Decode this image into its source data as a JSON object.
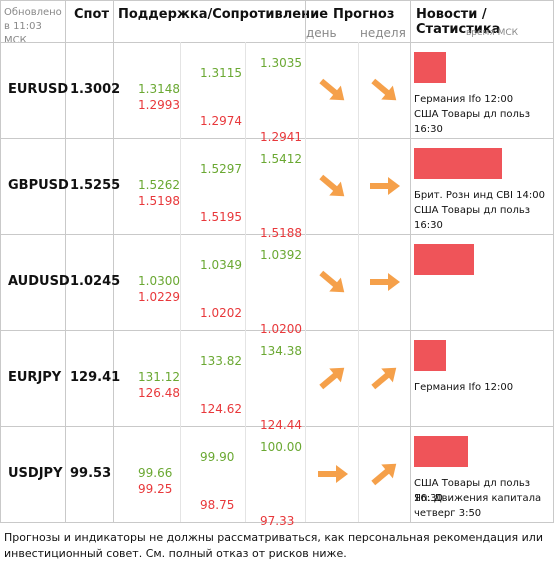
{
  "header": {
    "updated": "Обновлено в 11:03 МСК",
    "spot": "Спот",
    "levels": "Поддержка/Сопротивление",
    "forecast": "Прогноз",
    "day": "день",
    "week": "неделя",
    "news": "Новости / Статистика",
    "time": "время МСК"
  },
  "rows": [
    {
      "pair": "EURUSD",
      "spot": "1.3002",
      "levels": [
        [
          "1.3148",
          "1.2993"
        ],
        [
          "1.3115",
          "1.2974"
        ],
        [
          "1.3035",
          "1.2941"
        ]
      ],
      "news": [
        "Германия Ifo 12:00",
        "США Товары дл польз 16:30"
      ]
    },
    {
      "pair": "GBPUSD",
      "spot": "1.5255",
      "levels": [
        [
          "1.5262",
          "1.5198"
        ],
        [
          "1.5297",
          "1.5195"
        ],
        [
          "1.5412",
          "1.5188"
        ]
      ],
      "news": [
        "Брит. Розн инд CBI 14:00",
        "США Товары дл польз 16:30"
      ]
    },
    {
      "pair": "AUDUSD",
      "spot": "1.0245",
      "levels": [
        [
          "1.0300",
          "1.0229"
        ],
        [
          "1.0349",
          "1.0202"
        ],
        [
          "1.0392",
          "1.0200"
        ]
      ],
      "news": []
    },
    {
      "pair": "EURJPY",
      "spot": "129.41",
      "levels": [
        [
          "131.12",
          "126.48"
        ],
        [
          "133.82",
          "124.62"
        ],
        [
          "134.38",
          "124.44"
        ]
      ],
      "news": [
        "Германия Ifo 12:00"
      ]
    },
    {
      "pair": "USDJPY",
      "spot": "99.53",
      "levels": [
        [
          "99.66",
          "99.25"
        ],
        [
          "99.90",
          "98.75"
        ],
        [
          "100.00",
          "97.33"
        ]
      ],
      "news": [
        "США Товары дл польз 16:30",
        "Яп. Движения капитала четверг 3:50"
      ]
    }
  ],
  "footer": "Прогнозы и индикаторы не должны рассматриваться, как персональная рекомендация или инвестиционный совет. См. полный отказ от рисков ниже."
}
